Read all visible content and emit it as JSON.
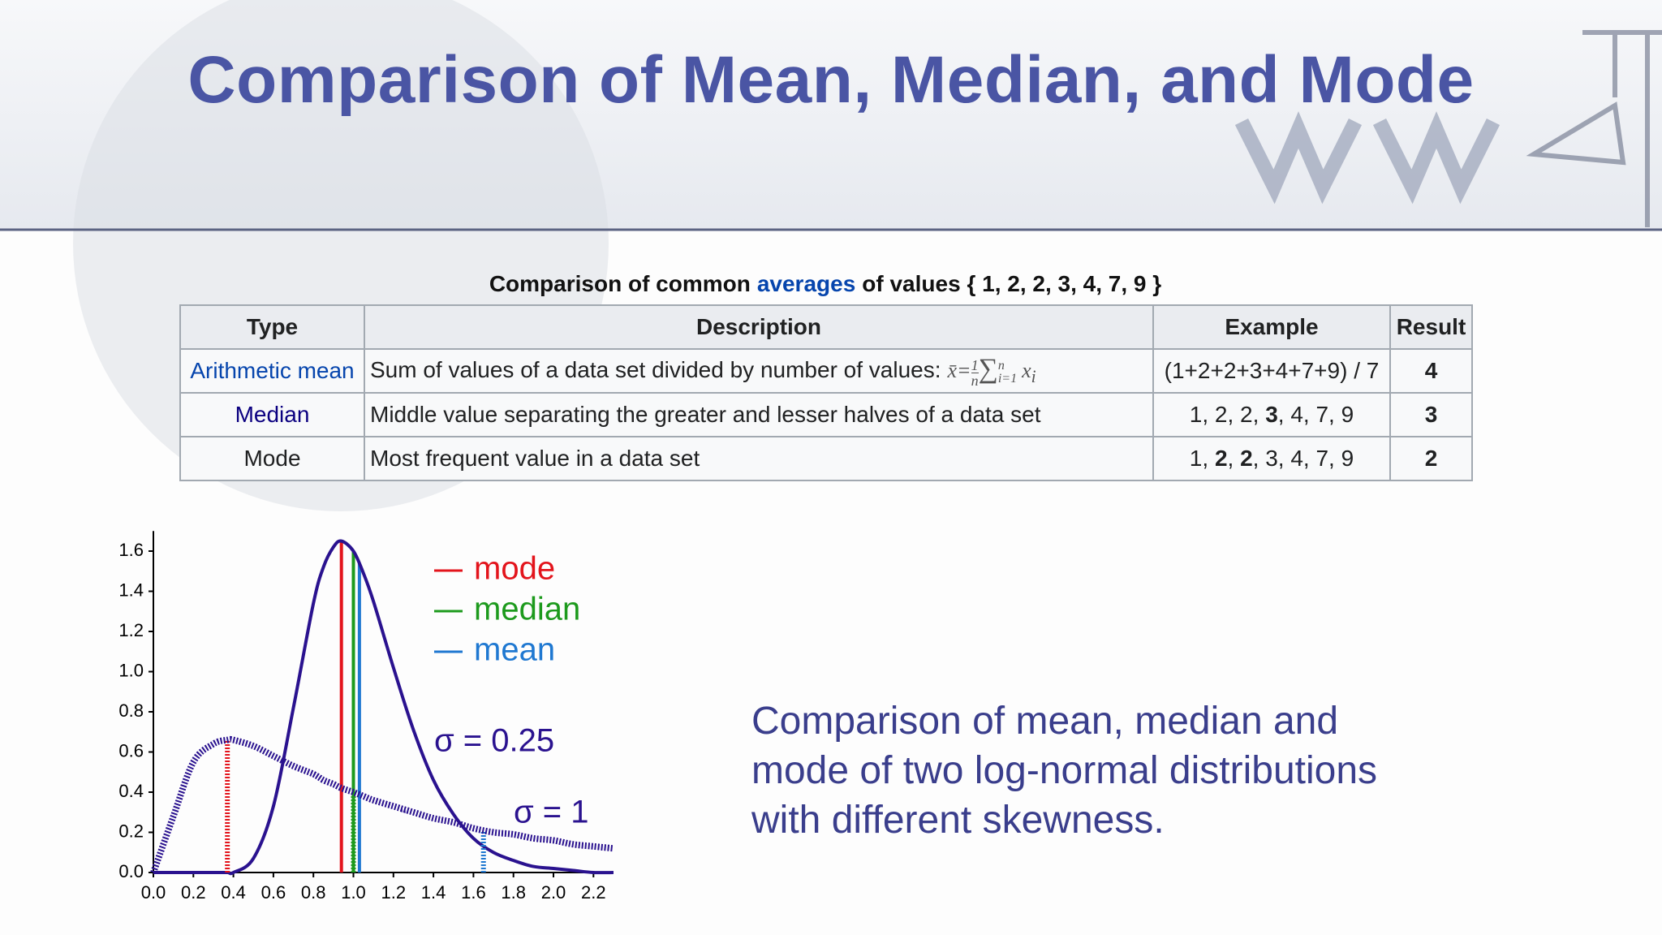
{
  "header": {
    "title": "Comparison of Mean, Median, and Mode"
  },
  "table": {
    "caption": {
      "before": "Comparison of common",
      "link": "averages",
      "after": "of values { 1, 2, 2, 3, 4, 7, 9 }"
    },
    "headers": [
      "Type",
      "Description",
      "Example",
      "Result"
    ],
    "rows": [
      {
        "type": "Arithmetic mean",
        "type_color": "#0645ad",
        "description": "Sum of values of a data set divided by number of values:",
        "formula": {
          "lhs": "x̄=",
          "num": "1",
          "den": "n",
          "sum": "∑",
          "sup": "n",
          "sub": "i=1",
          "var": "x",
          "var_sub": "i"
        },
        "example": [
          {
            "text": "(1+2+2+3+4+7+9) / 7",
            "bold": false
          }
        ],
        "result": "4"
      },
      {
        "type": "Median",
        "type_color": "#0b0080",
        "description": "Middle value separating the greater and lesser halves of a data set",
        "example": [
          {
            "text": "1, 2, 2, ",
            "bold": false
          },
          {
            "text": "3",
            "bold": true
          },
          {
            "text": ", 4, 7, 9",
            "bold": false
          }
        ],
        "result": "3"
      },
      {
        "type": "Mode",
        "type_color": "#202122",
        "description": "Most frequent value in a data set",
        "example": [
          {
            "text": "1, ",
            "bold": false
          },
          {
            "text": "2",
            "bold": true
          },
          {
            "text": ", ",
            "bold": false
          },
          {
            "text": "2",
            "bold": true
          },
          {
            "text": ", 3, 4, 7, 9",
            "bold": false
          }
        ],
        "result": "2"
      }
    ]
  },
  "chart_data": {
    "type": "line",
    "x": [
      0,
      0.1,
      0.2,
      0.3,
      0.37,
      0.4,
      0.5,
      0.6,
      0.7,
      0.8,
      0.85,
      0.9,
      0.94,
      1.0,
      1.05,
      1.1,
      1.2,
      1.3,
      1.4,
      1.5,
      1.6,
      1.7,
      1.8,
      1.9,
      2.0,
      2.1,
      2.2,
      2.3
    ],
    "series": [
      {
        "name": "σ = 0.25",
        "color": "#2a128f",
        "dashed": false,
        "values": [
          0,
          0,
          0,
          0,
          0,
          0,
          0.07,
          0.33,
          0.82,
          1.34,
          1.52,
          1.62,
          1.65,
          1.6,
          1.49,
          1.35,
          1.02,
          0.71,
          0.46,
          0.29,
          0.17,
          0.1,
          0.06,
          0.03,
          0.02,
          0.01,
          0,
          0
        ],
        "markers": [
          {
            "x": 0.94,
            "y": 1.65
          },
          {
            "x": 1.0,
            "y": 1.6
          },
          {
            "x": 1.03,
            "y": 1.54
          }
        ]
      },
      {
        "name": "σ = 1",
        "color": "#2a128f",
        "dashed": true,
        "values": [
          0,
          0.28,
          0.55,
          0.64,
          0.66,
          0.66,
          0.63,
          0.58,
          0.53,
          0.49,
          0.46,
          0.44,
          0.42,
          0.4,
          0.38,
          0.36,
          0.33,
          0.3,
          0.27,
          0.25,
          0.22,
          0.2,
          0.19,
          0.17,
          0.16,
          0.14,
          0.13,
          0.12
        ],
        "markers": [
          {
            "x": 0.37,
            "y": 0.66
          },
          {
            "x": 1.0,
            "y": 0.4
          },
          {
            "x": 1.65,
            "y": 0.21
          }
        ]
      }
    ],
    "legend": [
      {
        "name": "mode",
        "color": "#e3141c"
      },
      {
        "name": "median",
        "color": "#1d9a1d"
      },
      {
        "name": "mean",
        "color": "#1f78d1"
      }
    ],
    "xlim": [
      0,
      2.3
    ],
    "xticks": [
      {
        "value": 0,
        "label": "0.0"
      },
      0.2,
      0.4,
      0.6,
      0.8,
      {
        "value": 1,
        "label": "1.0"
      },
      1.2,
      1.4,
      1.6,
      1.8,
      {
        "value": 2,
        "label": "2.0"
      },
      2.2
    ],
    "ylim": [
      0,
      1.7
    ],
    "yticks": [
      {
        "value": 0,
        "label": "0.0"
      },
      0.2,
      0.4,
      0.6,
      0.8,
      {
        "value": 1,
        "label": "1.0"
      },
      1.2,
      1.4,
      1.6
    ]
  },
  "description": [
    "Comparison of mean, median and",
    "mode of two log-normal distributions",
    "with different skewness."
  ]
}
